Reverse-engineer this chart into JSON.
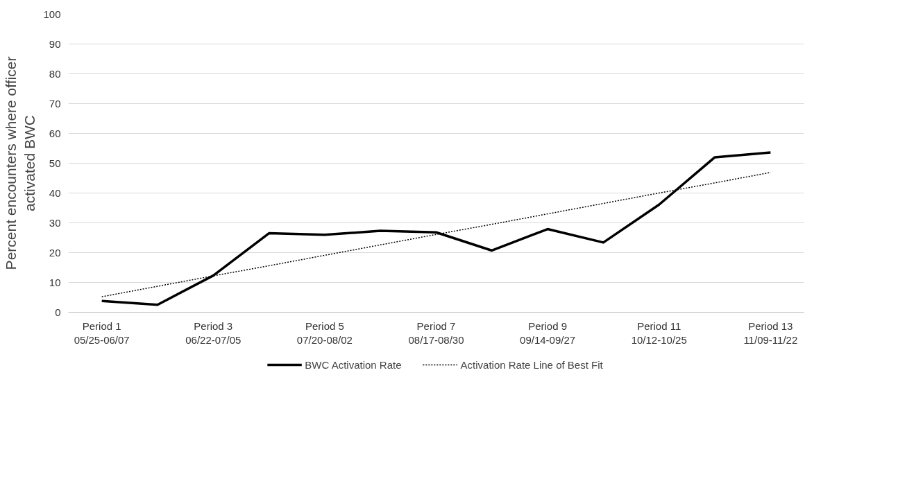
{
  "chart_data": {
    "type": "line",
    "ylabel": "Percent encounters where officer\nactivated BWC",
    "categories": [
      "Period 1\n05/25-06/07",
      null,
      "Period 3\n06/22-07/05",
      null,
      "Period 5\n07/20-08/02",
      null,
      "Period 7\n08/17-08/30",
      null,
      "Period 9\n09/14-09/27",
      null,
      "Period 11\n10/12-10/25",
      null,
      "Period 13\n11/09-11/22"
    ],
    "series": [
      {
        "name": "BWC Activation Rate",
        "color": "#000000",
        "line_style": "solid",
        "values": [
          3.8,
          2.5,
          12.3,
          26.5,
          26.0,
          27.3,
          26.8,
          20.7,
          27.9,
          23.4,
          36.1,
          52.0,
          53.6
        ]
      },
      {
        "name": "Activation Rate Line of Best Fit",
        "color": "#000000",
        "line_style": "dotted",
        "values": [
          5.2,
          8.7,
          12.2,
          15.6,
          19.1,
          22.6,
          26.1,
          29.5,
          33.0,
          36.5,
          40.0,
          43.4,
          46.9
        ]
      }
    ],
    "ylim": [
      0,
      100
    ],
    "yticks": [
      0,
      10,
      20,
      30,
      40,
      50,
      60,
      70,
      80,
      90,
      100
    ],
    "grid": "y",
    "legend": "bottom",
    "marker": "none"
  }
}
